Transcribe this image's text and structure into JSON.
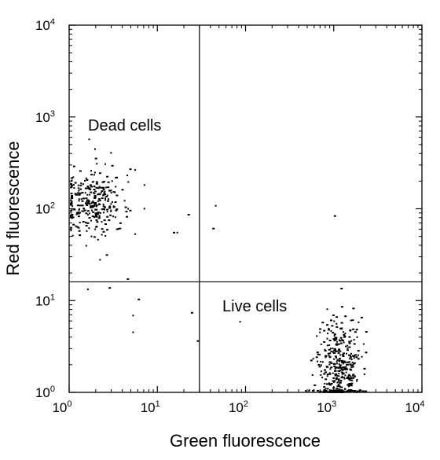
{
  "chart_data": {
    "type": "scatter",
    "xscale": "log",
    "yscale": "log",
    "xlim": [
      1,
      10000
    ],
    "ylim": [
      1,
      10000
    ],
    "xlabel": "Green fluorescence",
    "ylabel": "Red fluorescence",
    "xticks": [
      {
        "base": "10",
        "exp": "0"
      },
      {
        "base": "10",
        "exp": "1"
      },
      {
        "base": "10",
        "exp": "2"
      },
      {
        "base": "10",
        "exp": "3"
      },
      {
        "base": "10",
        "exp": "4"
      }
    ],
    "yticks": [
      {
        "base": "10",
        "exp": "0"
      },
      {
        "base": "10",
        "exp": "1"
      },
      {
        "base": "10",
        "exp": "2"
      },
      {
        "base": "10",
        "exp": "3"
      },
      {
        "base": "10",
        "exp": "4"
      }
    ],
    "gates": {
      "x": 30,
      "y": 16
    },
    "annotations": [
      {
        "text": "Dead cells",
        "x": 2.2,
        "y": 1000
      },
      {
        "text": "Live cells",
        "x": 25,
        "y": 6.8
      }
    ],
    "populations": [
      {
        "name_hidden": true,
        "center_x": 1.8,
        "center_y": 120,
        "n": 300,
        "sigma_log_x": 0.18,
        "sigma_log_y": 0.18
      },
      {
        "name_hidden": true,
        "center_x": 1100,
        "center_y": 1.8,
        "n": 420,
        "sigma_log_x": 0.13,
        "sigma_log_y": 0.28
      }
    ],
    "outliers": [
      [
        5.5,
        270
      ],
      [
        4.8,
        275
      ],
      [
        7.0,
        185
      ],
      [
        3.0,
        300
      ],
      [
        22,
        88
      ],
      [
        15,
        56
      ],
      [
        16.5,
        56
      ],
      [
        5.5,
        54
      ],
      [
        2.6,
        32
      ],
      [
        45,
        110
      ],
      [
        42,
        62
      ],
      [
        1000,
        85
      ],
      [
        6,
        10.5
      ],
      [
        5.2,
        7
      ],
      [
        5.2,
        4.6
      ],
      [
        24,
        7.5
      ],
      [
        1.6,
        13.5
      ],
      [
        2.8,
        14
      ],
      [
        4.5,
        17.5
      ],
      [
        85,
        6
      ],
      [
        28,
        3.7
      ]
    ]
  }
}
